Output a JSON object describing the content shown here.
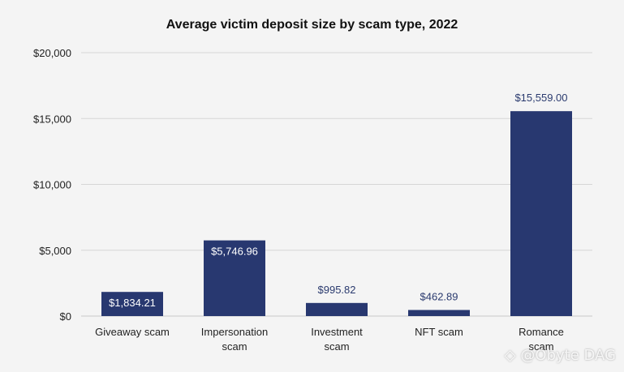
{
  "chart_data": {
    "type": "bar",
    "title": "Average victim deposit size by scam type, 2022",
    "xlabel": "",
    "ylabel": "",
    "categories": [
      [
        "Giveaway scam"
      ],
      [
        "Impersonation",
        "scam"
      ],
      [
        "Investment",
        "scam"
      ],
      [
        "NFT scam"
      ],
      [
        "Romance",
        "scam"
      ]
    ],
    "values": [
      1834.21,
      5746.96,
      995.82,
      462.89,
      15559.0
    ],
    "data_labels": [
      "$1,834.21",
      "$5,746.96",
      "$995.82",
      "$462.89",
      "$15,559.00"
    ],
    "label_inside": [
      true,
      true,
      false,
      false,
      false
    ],
    "ylim": [
      0,
      20000
    ],
    "yticks": [
      0,
      5000,
      10000,
      15000,
      20000
    ],
    "ytick_labels": [
      "$0",
      "$5,000",
      "$10,000",
      "$15,000",
      "$20,000"
    ],
    "grid": true,
    "colors": {
      "bar": "#283870",
      "grid": "#d6d6d6",
      "axis": "#c8c8c8"
    }
  },
  "watermark": {
    "text": "@Obyte DAG",
    "icon": "obyte-logo-icon"
  }
}
